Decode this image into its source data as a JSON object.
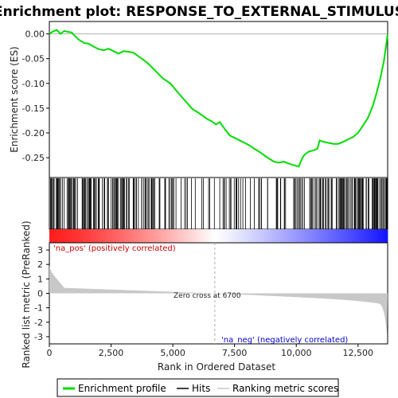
{
  "chart_data": {
    "type": "line",
    "title": "Enrichment plot: RESPONSE_TO_EXTERNAL_STIMULUS",
    "xlabel": "Rank in Ordered Dataset",
    "ylabel_top": "Enrichment score (ES)",
    "ylabel_bottom": "Ranked list metric (PreRanked)",
    "xlim": [
      0,
      13700
    ],
    "ylim_top": [
      -0.29,
      0.025
    ],
    "ylim_bottom": [
      -3.5,
      3.5
    ],
    "x_ticks": [
      0,
      2500,
      5000,
      7500,
      10000,
      12500
    ],
    "x_tick_labels": [
      "0",
      "2,500",
      "5,000",
      "7,500",
      "10,000",
      "12,500"
    ],
    "es_ticks": [
      0.0,
      -0.05,
      -0.1,
      -0.15,
      -0.2,
      -0.25
    ],
    "es_tick_labels": [
      "0.00",
      "-0.05",
      "-0.10",
      "-0.15",
      "-0.20",
      "-0.25"
    ],
    "metric_ticks": [
      3,
      2,
      1,
      0,
      -1,
      -2,
      -3
    ],
    "metric_tick_labels": [
      "3",
      "2",
      "1",
      "0",
      "-1",
      "-2",
      "-3"
    ],
    "es_curve": {
      "x": [
        0,
        150,
        300,
        450,
        600,
        750,
        900,
        1050,
        1200,
        1400,
        1600,
        1800,
        2000,
        2200,
        2400,
        2600,
        2800,
        3000,
        3200,
        3400,
        3600,
        3800,
        4000,
        4300,
        4600,
        4900,
        5200,
        5500,
        5800,
        6000,
        6200,
        6400,
        6600,
        6750,
        6900,
        7100,
        7300,
        7500,
        7700,
        7900,
        8100,
        8300,
        8500,
        8700,
        8900,
        9100,
        9300,
        9500,
        9700,
        9900,
        10100,
        10250,
        10350,
        10500,
        10700,
        10850,
        10950,
        11100,
        11300,
        11500,
        11700,
        11900,
        12100,
        12300,
        12500,
        12700,
        12900,
        13100,
        13250,
        13400,
        13550,
        13650,
        13700
      ],
      "y": [
        0.0,
        0.005,
        0.008,
        0.0,
        0.006,
        0.004,
        0.003,
        -0.005,
        -0.012,
        -0.018,
        -0.02,
        -0.026,
        -0.031,
        -0.033,
        -0.03,
        -0.035,
        -0.04,
        -0.035,
        -0.036,
        -0.038,
        -0.045,
        -0.052,
        -0.06,
        -0.075,
        -0.09,
        -0.1,
        -0.118,
        -0.135,
        -0.152,
        -0.158,
        -0.165,
        -0.172,
        -0.177,
        -0.183,
        -0.178,
        -0.192,
        -0.205,
        -0.21,
        -0.215,
        -0.22,
        -0.225,
        -0.232,
        -0.238,
        -0.245,
        -0.252,
        -0.258,
        -0.26,
        -0.258,
        -0.262,
        -0.265,
        -0.268,
        -0.25,
        -0.243,
        -0.238,
        -0.235,
        -0.232,
        -0.215,
        -0.218,
        -0.22,
        -0.222,
        -0.222,
        -0.218,
        -0.213,
        -0.208,
        -0.2,
        -0.185,
        -0.17,
        -0.145,
        -0.12,
        -0.09,
        -0.055,
        -0.02,
        0.0
      ]
    },
    "zero_cross": 6700,
    "zero_cross_label": "Zero cross at 6700",
    "pos_label": "'na_pos' (positively correlated)",
    "neg_label": "'na_neg' (negatively correlated)",
    "n_genes": 13700,
    "hit_density": [
      0.7,
      0.8,
      0.9,
      0.7,
      0.6,
      0.5,
      0.5,
      0.3,
      0.2,
      0.2,
      0.35,
      0.3,
      0.25,
      0.3,
      0.35,
      0.4,
      0.6,
      0.75,
      0.85,
      0.9
    ],
    "colors": {
      "curve": "#00dd00",
      "hits": "#000000",
      "metric_fill": "#c8c8c8",
      "zero_line": "#aaaaaa",
      "pos": "#ff0000",
      "neg": "#0000ff"
    },
    "legend": [
      {
        "label": "Enrichment profile",
        "kind": "curve"
      },
      {
        "label": "Hits",
        "kind": "hits"
      },
      {
        "label": "Ranking metric scores",
        "kind": "metric"
      }
    ]
  }
}
